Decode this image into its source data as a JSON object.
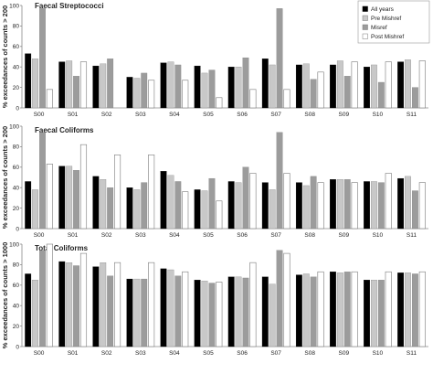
{
  "chart_data": [
    {
      "type": "bar",
      "title": "Faecal Streptococci",
      "ylabel": "% exceedances of counts > 200",
      "ylim": [
        0,
        100
      ],
      "yticks": [
        0,
        20,
        40,
        60,
        80,
        100
      ],
      "categories": [
        "S00",
        "S01",
        "S02",
        "S03",
        "S04",
        "S05",
        "S06",
        "S07",
        "S08",
        "S09",
        "S10",
        "S11"
      ],
      "series": [
        {
          "name": "All years",
          "values": [
            53,
            45,
            41,
            30,
            44,
            41,
            40,
            48,
            42,
            42,
            40,
            45
          ]
        },
        {
          "name": "Pre Mishref",
          "values": [
            48,
            46,
            43,
            29,
            45,
            34,
            40,
            42,
            43,
            46,
            42,
            47
          ]
        },
        {
          "name": "Misref",
          "values": [
            97,
            31,
            48,
            34,
            42,
            37,
            49,
            97,
            28,
            31,
            25,
            20
          ]
        },
        {
          "name": "Post Mishref",
          "values": [
            18,
            45,
            0,
            27,
            27,
            10,
            18,
            18,
            35,
            45,
            45,
            46
          ]
        }
      ]
    },
    {
      "type": "bar",
      "title": "Faecal  Coliforms",
      "ylabel": "% exceedances of counts > 200",
      "ylim": [
        0,
        100
      ],
      "yticks": [
        0,
        20,
        40,
        60,
        80,
        100
      ],
      "categories": [
        "S00",
        "S01",
        "S02",
        "S03",
        "S04",
        "S05",
        "S06",
        "S07",
        "S08",
        "S09",
        "S10",
        "S11"
      ],
      "series": [
        {
          "name": "All years",
          "values": [
            46,
            61,
            51,
            40,
            56,
            38,
            46,
            45,
            45,
            48,
            46,
            49
          ]
        },
        {
          "name": "Pre Mishref",
          "values": [
            38,
            61,
            48,
            38,
            52,
            37,
            45,
            38,
            42,
            48,
            46,
            51
          ]
        },
        {
          "name": "Misref",
          "values": [
            94,
            57,
            40,
            45,
            46,
            49,
            60,
            94,
            51,
            48,
            45,
            37
          ]
        },
        {
          "name": "Post Mishref",
          "values": [
            63,
            82,
            72,
            72,
            36,
            27,
            54,
            54,
            45,
            45,
            54,
            45
          ]
        }
      ]
    },
    {
      "type": "bar",
      "title": "Total Coliforms",
      "ylabel": "% exceedances of counts > 1000",
      "ylim": [
        0,
        100
      ],
      "yticks": [
        0,
        20,
        40,
        60,
        80,
        100
      ],
      "categories": [
        "S00",
        "S01",
        "S02",
        "S03",
        "S04",
        "S05",
        "S06",
        "S07",
        "S08",
        "S09",
        "S10",
        "S11"
      ],
      "series": [
        {
          "name": "All years",
          "values": [
            71,
            83,
            78,
            66,
            76,
            65,
            68,
            68,
            70,
            73,
            65,
            72
          ]
        },
        {
          "name": "Pre Mishref",
          "values": [
            65,
            82,
            82,
            66,
            75,
            64,
            68,
            61,
            71,
            72,
            65,
            72
          ]
        },
        {
          "name": "Misref",
          "values": [
            94,
            79,
            69,
            66,
            69,
            62,
            67,
            94,
            68,
            73,
            65,
            71
          ]
        },
        {
          "name": "Post Mishref",
          "values": [
            100,
            91,
            82,
            82,
            73,
            63,
            82,
            91,
            73,
            73,
            73,
            73
          ]
        }
      ]
    }
  ],
  "legend": {
    "placement": "top-right",
    "items": [
      "All years",
      "Pre Mishref",
      "Misref",
      "Post Mishref"
    ]
  },
  "colors": {
    "All years": "#000000",
    "Pre Mishref": "#c8c8c8",
    "Misref": "#9c9c9c",
    "Post Mishref": "#ffffff",
    "outline": "#7a7a7a",
    "axis": "#8a8a8a"
  }
}
